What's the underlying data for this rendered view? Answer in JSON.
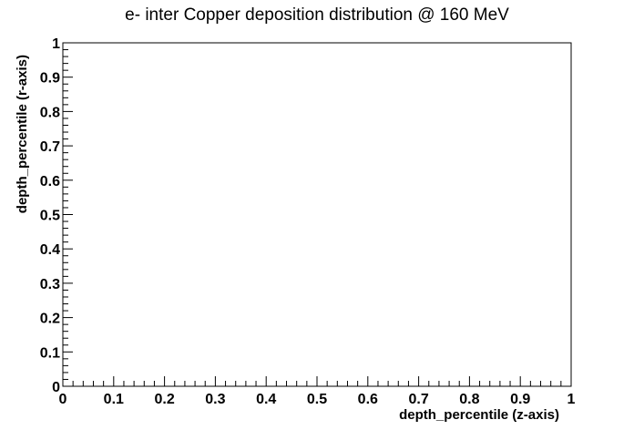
{
  "chart_data": {
    "type": "scatter",
    "title": "e- inter Copper deposition distribution @ 160 MeV",
    "xlabel": "depth_percentile (z-axis)",
    "ylabel": "depth_percentile (r-axis)",
    "xlim": [
      0,
      1
    ],
    "ylim": [
      0,
      1
    ],
    "xticks": [
      "0",
      "0.1",
      "0.2",
      "0.3",
      "0.4",
      "0.5",
      "0.6",
      "0.7",
      "0.8",
      "0.9",
      "1"
    ],
    "yticks": [
      "0",
      "0.1",
      "0.2",
      "0.3",
      "0.4",
      "0.5",
      "0.6",
      "0.7",
      "0.8",
      "0.9",
      "1"
    ],
    "series": [],
    "grid": false
  }
}
